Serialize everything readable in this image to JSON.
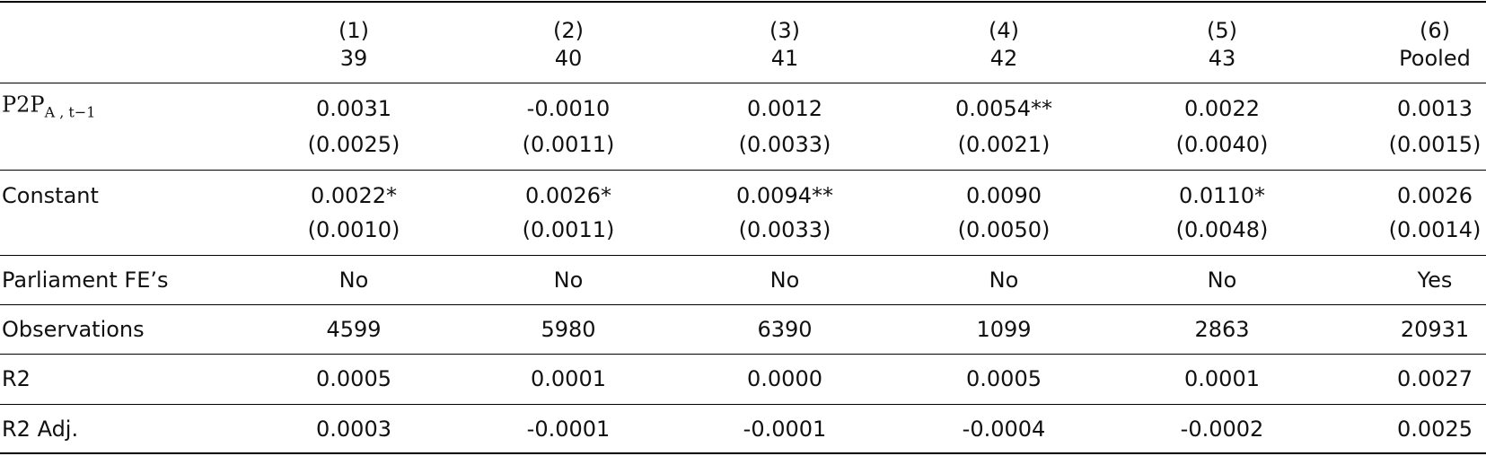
{
  "table": {
    "columns": [
      {
        "number": "(1)",
        "label": "39"
      },
      {
        "number": "(2)",
        "label": "40"
      },
      {
        "number": "(3)",
        "label": "41"
      },
      {
        "number": "(4)",
        "label": "42"
      },
      {
        "number": "(5)",
        "label": "43"
      },
      {
        "number": "(6)",
        "label": "Pooled"
      }
    ],
    "coefficient_rows": [
      {
        "label": "P2P",
        "label_subscript": "A , t−1",
        "estimates": [
          "0.0031",
          "-0.0010",
          "0.0012",
          "0.0054**",
          "0.0022",
          "0.0013"
        ],
        "std_errors": [
          "(0.0025)",
          "(0.0011)",
          "(0.0033)",
          "(0.0021)",
          "(0.0040)",
          "(0.0015)"
        ]
      },
      {
        "label": "Constant",
        "estimates": [
          "0.0022*",
          "0.0026*",
          "0.0094**",
          "0.0090",
          "0.0110*",
          "0.0026"
        ],
        "std_errors": [
          "(0.0010)",
          "(0.0011)",
          "(0.0033)",
          "(0.0050)",
          "(0.0048)",
          "(0.0014)"
        ]
      }
    ],
    "stat_rows": [
      {
        "label": "Parliament FE’s",
        "cells": [
          "No",
          "No",
          "No",
          "No",
          "No",
          "Yes"
        ]
      },
      {
        "label": "Observations",
        "cells": [
          "4599",
          "5980",
          "6390",
          "1099",
          "2863",
          "20931"
        ]
      },
      {
        "label": "R2",
        "cells": [
          "0.0005",
          "0.0001",
          "0.0000",
          "0.0005",
          "0.0001",
          "0.0027"
        ]
      },
      {
        "label": "R2 Adj.",
        "cells": [
          "0.0003",
          "-0.0001",
          "-0.0001",
          "-0.0004",
          "-0.0002",
          "0.0025"
        ]
      }
    ]
  }
}
